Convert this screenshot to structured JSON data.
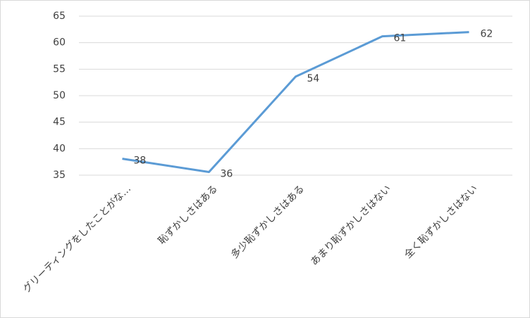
{
  "chart_data": {
    "type": "line",
    "categories": [
      "グリーティングをしたことがな…",
      "恥ずかしさはある",
      "多少恥ずかしさはある",
      "あまり恥ずかしさはない",
      "全く恥ずかしさはない"
    ],
    "series": [
      {
        "name": null,
        "color": "#5b9bd5",
        "values": [
          38.1,
          35.6,
          53.6,
          61.2,
          62
        ],
        "value_labels": [
          "38",
          "36",
          "54",
          "61",
          "62"
        ]
      }
    ],
    "ylim": [
      35,
      65
    ],
    "yticks": [
      35,
      40,
      45,
      50,
      55,
      60,
      65
    ],
    "grid": true
  }
}
